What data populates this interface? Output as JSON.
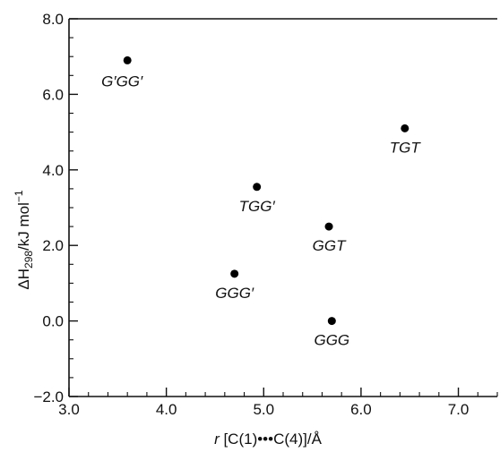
{
  "chart_data": {
    "type": "scatter",
    "title": "",
    "xlabel": "r [C(1)•••C(4)]/Å",
    "ylabel": "ΔH298/kJ mol−1",
    "ylabel_parts": {
      "delta": "ΔH",
      "subscript": "298",
      "unit": "/kJ mol",
      "superscript": "−1"
    },
    "xlabel_parts": {
      "r": "r",
      "rest": " [C(1)•••C(4)]/Å"
    },
    "xlim": [
      3.0,
      7.4
    ],
    "ylim": [
      -2.0,
      8.0
    ],
    "x_ticks": [
      {
        "value": 3.0,
        "label": "3.0"
      },
      {
        "value": 4.0,
        "label": "4.0"
      },
      {
        "value": 5.0,
        "label": "5.0"
      },
      {
        "value": 6.0,
        "label": "6.0"
      },
      {
        "value": 7.0,
        "label": "7.0"
      }
    ],
    "y_ticks": [
      {
        "value": -2.0,
        "label": "−2.0"
      },
      {
        "value": 0.0,
        "label": "0.0"
      },
      {
        "value": 2.0,
        "label": "2.0"
      },
      {
        "value": 4.0,
        "label": "4.0"
      },
      {
        "value": 6.0,
        "label": "6.0"
      },
      {
        "value": 8.0,
        "label": "8.0"
      }
    ],
    "grid": false,
    "points": [
      {
        "label": "G′GG′",
        "x": 3.6,
        "y": 6.9,
        "label_pos": "below-left"
      },
      {
        "label": "TGT",
        "x": 6.45,
        "y": 5.1,
        "label_pos": "below"
      },
      {
        "label": "TGG′",
        "x": 4.93,
        "y": 3.55,
        "label_pos": "below"
      },
      {
        "label": "GGT",
        "x": 5.67,
        "y": 2.5,
        "label_pos": "below"
      },
      {
        "label": "GGG′",
        "x": 4.7,
        "y": 1.25,
        "label_pos": "below"
      },
      {
        "label": "GGG",
        "x": 5.7,
        "y": 0.0,
        "label_pos": "below"
      }
    ]
  }
}
